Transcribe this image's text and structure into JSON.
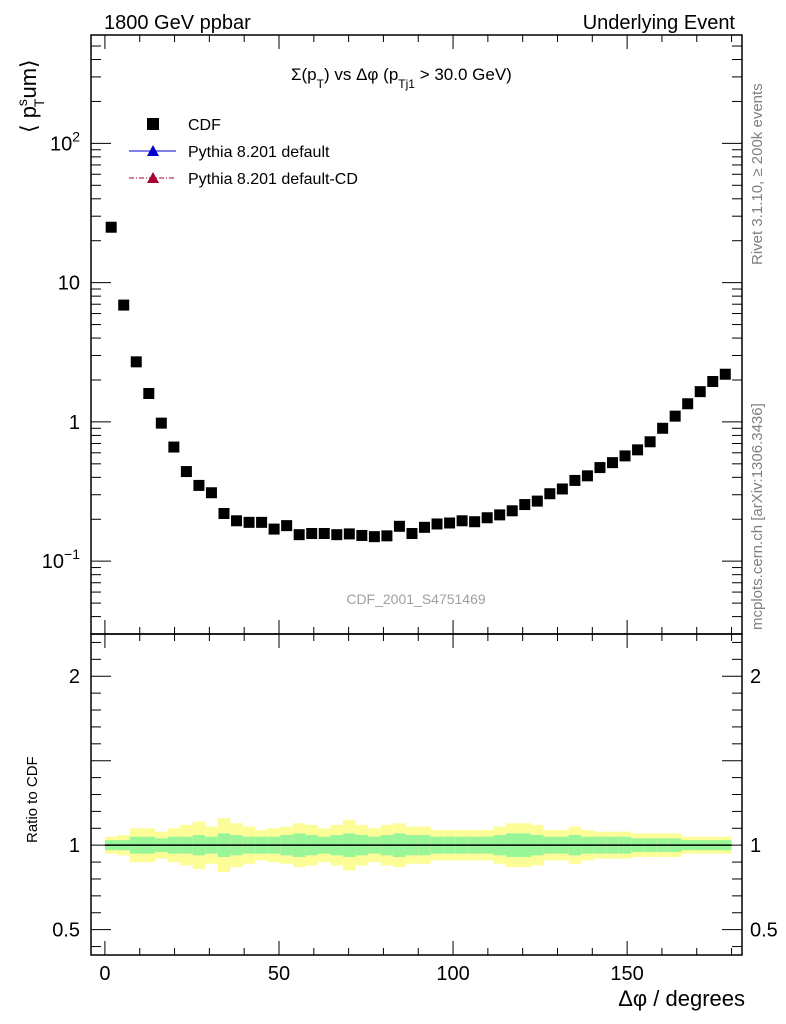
{
  "header": {
    "left": "1800 GeV ppbar",
    "right": "Underlying Event"
  },
  "side_labels": {
    "rivet": "Rivet 3.1.10, ≥ 200k events",
    "mcplots": "mcplots.cern.ch [arXiv:1306.3436]"
  },
  "chart_data": [
    {
      "type": "scatter",
      "title": "Σ(p_T) vs Δφ (p_Tj1 > 30.0 GeV)",
      "ylabel": "⟨ p_T^sum⟩",
      "ylog": true,
      "ylim": [
        0.03,
        600
      ],
      "xlim": [
        -4,
        183
      ],
      "watermark": "CDF_2001_S4751469",
      "legend_position": "top-left",
      "legend": [
        {
          "name": "CDF",
          "marker": "square",
          "color": "#000000"
        },
        {
          "name": "Pythia 8.201 default",
          "marker": "triangle",
          "line": "solid",
          "color": "#0000cc"
        },
        {
          "name": "Pythia 8.201 default-CD",
          "marker": "triangle",
          "line": "dash-dot",
          "color": "#aa0033"
        }
      ],
      "yticks": [
        {
          "value": 0.1,
          "base": "10",
          "exp": "−1"
        },
        {
          "value": 1,
          "base": "1",
          "exp": ""
        },
        {
          "value": 10,
          "base": "10",
          "exp": ""
        },
        {
          "value": 100,
          "base": "10",
          "exp": "2"
        }
      ],
      "series": [
        {
          "name": "CDF",
          "x": [
            1.8,
            5.4,
            9,
            12.6,
            16.2,
            19.8,
            23.4,
            27,
            30.6,
            34.2,
            37.8,
            41.4,
            45,
            48.6,
            52.2,
            55.8,
            59.4,
            63,
            66.6,
            70.2,
            73.8,
            77.4,
            81,
            84.6,
            88.2,
            91.8,
            95.4,
            99,
            102.6,
            106.2,
            109.8,
            113.4,
            117,
            120.6,
            124.2,
            127.8,
            131.4,
            135,
            138.6,
            142.2,
            145.8,
            149.4,
            153,
            156.6,
            160.2,
            163.8,
            167.4,
            171,
            174.6,
            178.2
          ],
          "y": [
            25,
            6.9,
            2.7,
            1.6,
            0.98,
            0.66,
            0.44,
            0.35,
            0.31,
            0.22,
            0.195,
            0.19,
            0.19,
            0.17,
            0.18,
            0.155,
            0.158,
            0.158,
            0.155,
            0.157,
            0.153,
            0.15,
            0.152,
            0.178,
            0.158,
            0.175,
            0.185,
            0.188,
            0.195,
            0.192,
            0.205,
            0.215,
            0.23,
            0.255,
            0.27,
            0.305,
            0.33,
            0.38,
            0.41,
            0.47,
            0.51,
            0.57,
            0.63,
            0.72,
            0.9,
            1.1,
            1.35,
            1.65,
            1.95,
            2.2
          ]
        }
      ]
    },
    {
      "type": "area",
      "ylabel": "Ratio to CDF",
      "xlabel": "Δφ / degrees",
      "xlim": [
        -4,
        183
      ],
      "ylim": [
        0.35,
        2.25
      ],
      "xticks": [
        0,
        50,
        100,
        150
      ],
      "yticks": [
        0.5,
        1,
        2
      ],
      "reference_line": 1,
      "bands": {
        "inner_color": "#98f598",
        "outer_color": "#fdfd98",
        "x": [
          1.8,
          5.4,
          9,
          12.6,
          16.2,
          19.8,
          23.4,
          27,
          30.6,
          34.2,
          37.8,
          41.4,
          45,
          48.6,
          52.2,
          55.8,
          59.4,
          63,
          66.6,
          70.2,
          73.8,
          77.4,
          81,
          84.6,
          88.2,
          91.8,
          95.4,
          99,
          102.6,
          106.2,
          109.8,
          113.4,
          117,
          120.6,
          124.2,
          127.8,
          131.4,
          135,
          138.6,
          142.2,
          145.8,
          149.4,
          153,
          156.6,
          160.2,
          163.8,
          167.4,
          171,
          174.6,
          178.2
        ],
        "inner_half": [
          0.03,
          0.03,
          0.05,
          0.05,
          0.04,
          0.05,
          0.05,
          0.06,
          0.05,
          0.07,
          0.06,
          0.05,
          0.05,
          0.05,
          0.06,
          0.07,
          0.06,
          0.05,
          0.06,
          0.07,
          0.06,
          0.05,
          0.06,
          0.07,
          0.06,
          0.06,
          0.05,
          0.05,
          0.05,
          0.05,
          0.05,
          0.06,
          0.07,
          0.07,
          0.06,
          0.05,
          0.05,
          0.06,
          0.05,
          0.05,
          0.05,
          0.05,
          0.04,
          0.04,
          0.04,
          0.04,
          0.03,
          0.03,
          0.03,
          0.03
        ],
        "outer_half": [
          0.05,
          0.06,
          0.1,
          0.1,
          0.08,
          0.1,
          0.12,
          0.14,
          0.11,
          0.16,
          0.13,
          0.11,
          0.09,
          0.1,
          0.11,
          0.13,
          0.12,
          0.1,
          0.12,
          0.15,
          0.12,
          0.1,
          0.12,
          0.13,
          0.11,
          0.11,
          0.09,
          0.09,
          0.09,
          0.09,
          0.09,
          0.11,
          0.13,
          0.13,
          0.12,
          0.09,
          0.09,
          0.11,
          0.09,
          0.08,
          0.08,
          0.08,
          0.07,
          0.07,
          0.07,
          0.07,
          0.05,
          0.05,
          0.05,
          0.05
        ]
      }
    }
  ]
}
